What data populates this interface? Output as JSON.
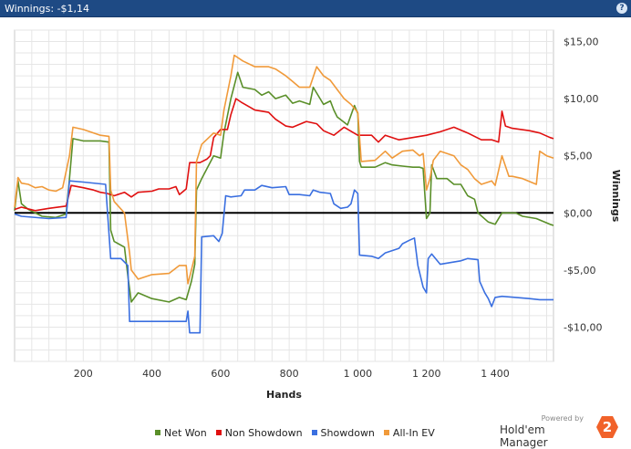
{
  "window": {
    "title": "Winnings: -$1,14",
    "help_label": "?"
  },
  "brand": {
    "powered_by": "Powered by",
    "name": "Hold'em Manager",
    "logo_text": "2"
  },
  "chart_data": {
    "type": "line",
    "xlabel": "Hands",
    "ylabel": "Winnings",
    "xlim": [
      0,
      1570
    ],
    "ylim": [
      -13,
      16
    ],
    "x_ticks": [
      200,
      400,
      600,
      800,
      1000,
      1200,
      1400
    ],
    "x_tick_labels": [
      "200",
      "400",
      "600",
      "800",
      "1 000",
      "1 200",
      "1 400"
    ],
    "y_ticks": [
      15,
      10,
      5,
      0,
      -5,
      -10
    ],
    "y_tick_labels": [
      "$15,00",
      "$10,00",
      "$5,00",
      "$0,00",
      "-$5,00",
      "-$10,00"
    ],
    "grid": true,
    "legend_position": "bottom",
    "series": [
      {
        "name": "Net Won",
        "color": "#5a8f29",
        "points": [
          [
            0,
            0.2
          ],
          [
            10,
            2.8
          ],
          [
            20,
            0.8
          ],
          [
            40,
            0.3
          ],
          [
            80,
            -0.3
          ],
          [
            120,
            -0.4
          ],
          [
            150,
            -0.1
          ],
          [
            160,
            3
          ],
          [
            170,
            6.5
          ],
          [
            200,
            6.3
          ],
          [
            250,
            6.3
          ],
          [
            275,
            6.2
          ],
          [
            280,
            -1.5
          ],
          [
            290,
            -2.5
          ],
          [
            320,
            -3
          ],
          [
            330,
            -5.5
          ],
          [
            340,
            -7.8
          ],
          [
            360,
            -7
          ],
          [
            400,
            -7.5
          ],
          [
            450,
            -7.8
          ],
          [
            480,
            -7.4
          ],
          [
            500,
            -7.6
          ],
          [
            515,
            -6
          ],
          [
            525,
            -4.5
          ],
          [
            530,
            2
          ],
          [
            545,
            3
          ],
          [
            580,
            5
          ],
          [
            600,
            4.8
          ],
          [
            610,
            7
          ],
          [
            630,
            10
          ],
          [
            650,
            12.3
          ],
          [
            665,
            11
          ],
          [
            700,
            10.8
          ],
          [
            720,
            10.3
          ],
          [
            740,
            10.6
          ],
          [
            760,
            10
          ],
          [
            790,
            10.3
          ],
          [
            810,
            9.6
          ],
          [
            830,
            9.8
          ],
          [
            860,
            9.5
          ],
          [
            870,
            11
          ],
          [
            900,
            9.5
          ],
          [
            920,
            9.8
          ],
          [
            930,
            9
          ],
          [
            940,
            8.4
          ],
          [
            970,
            7.7
          ],
          [
            990,
            9.4
          ],
          [
            1000,
            8.7
          ],
          [
            1005,
            4.5
          ],
          [
            1010,
            4
          ],
          [
            1050,
            4
          ],
          [
            1080,
            4.4
          ],
          [
            1100,
            4.2
          ],
          [
            1130,
            4.1
          ],
          [
            1160,
            4
          ],
          [
            1180,
            4
          ],
          [
            1190,
            3.9
          ],
          [
            1200,
            -0.5
          ],
          [
            1210,
            0
          ],
          [
            1215,
            4.2
          ],
          [
            1230,
            3
          ],
          [
            1260,
            3
          ],
          [
            1280,
            2.5
          ],
          [
            1300,
            2.5
          ],
          [
            1320,
            1.5
          ],
          [
            1340,
            1.2
          ],
          [
            1350,
            0
          ],
          [
            1380,
            -0.8
          ],
          [
            1400,
            -1
          ],
          [
            1420,
            0
          ],
          [
            1440,
            0
          ],
          [
            1460,
            0
          ],
          [
            1480,
            -0.3
          ],
          [
            1520,
            -0.5
          ],
          [
            1560,
            -1
          ],
          [
            1570,
            -1.1
          ]
        ]
      },
      {
        "name": "Non Showdown",
        "color": "#e01010",
        "points": [
          [
            0,
            0.3
          ],
          [
            20,
            0.5
          ],
          [
            60,
            0.2
          ],
          [
            100,
            0.4
          ],
          [
            150,
            0.6
          ],
          [
            165,
            2.4
          ],
          [
            200,
            2.2
          ],
          [
            230,
            2
          ],
          [
            250,
            1.8
          ],
          [
            270,
            1.7
          ],
          [
            290,
            1.5
          ],
          [
            320,
            1.8
          ],
          [
            340,
            1.4
          ],
          [
            360,
            1.8
          ],
          [
            400,
            1.9
          ],
          [
            420,
            2.1
          ],
          [
            450,
            2.1
          ],
          [
            470,
            2.3
          ],
          [
            480,
            1.6
          ],
          [
            500,
            2.1
          ],
          [
            510,
            4.4
          ],
          [
            540,
            4.4
          ],
          [
            560,
            4.7
          ],
          [
            570,
            5
          ],
          [
            580,
            6.6
          ],
          [
            600,
            7.3
          ],
          [
            620,
            7.3
          ],
          [
            630,
            8.6
          ],
          [
            645,
            10
          ],
          [
            660,
            9.7
          ],
          [
            700,
            9
          ],
          [
            740,
            8.8
          ],
          [
            760,
            8.2
          ],
          [
            790,
            7.6
          ],
          [
            810,
            7.5
          ],
          [
            850,
            8
          ],
          [
            880,
            7.8
          ],
          [
            900,
            7.2
          ],
          [
            930,
            6.8
          ],
          [
            960,
            7.5
          ],
          [
            1000,
            6.8
          ],
          [
            1040,
            6.8
          ],
          [
            1060,
            6.2
          ],
          [
            1080,
            6.8
          ],
          [
            1120,
            6.4
          ],
          [
            1160,
            6.6
          ],
          [
            1200,
            6.8
          ],
          [
            1240,
            7.1
          ],
          [
            1280,
            7.5
          ],
          [
            1320,
            7
          ],
          [
            1360,
            6.4
          ],
          [
            1390,
            6.4
          ],
          [
            1400,
            6.3
          ],
          [
            1410,
            6.2
          ],
          [
            1420,
            8.9
          ],
          [
            1430,
            7.6
          ],
          [
            1450,
            7.4
          ],
          [
            1500,
            7.2
          ],
          [
            1530,
            7
          ],
          [
            1560,
            6.6
          ],
          [
            1570,
            6.5
          ]
        ]
      },
      {
        "name": "Showdown",
        "color": "#3a6fe0",
        "points": [
          [
            0,
            -0.1
          ],
          [
            20,
            -0.3
          ],
          [
            100,
            -0.5
          ],
          [
            150,
            -0.4
          ],
          [
            160,
            2.8
          ],
          [
            200,
            2.7
          ],
          [
            265,
            2.5
          ],
          [
            280,
            -4
          ],
          [
            310,
            -4
          ],
          [
            330,
            -4.6
          ],
          [
            335,
            -9.5
          ],
          [
            420,
            -9.5
          ],
          [
            500,
            -9.5
          ],
          [
            505,
            -8.6
          ],
          [
            510,
            -10.5
          ],
          [
            540,
            -10.5
          ],
          [
            545,
            -2.1
          ],
          [
            580,
            -2
          ],
          [
            595,
            -2.5
          ],
          [
            605,
            -1.8
          ],
          [
            615,
            1.5
          ],
          [
            630,
            1.4
          ],
          [
            660,
            1.5
          ],
          [
            670,
            2
          ],
          [
            700,
            2
          ],
          [
            720,
            2.4
          ],
          [
            750,
            2.2
          ],
          [
            790,
            2.3
          ],
          [
            800,
            1.6
          ],
          [
            830,
            1.6
          ],
          [
            860,
            1.5
          ],
          [
            870,
            2
          ],
          [
            890,
            1.8
          ],
          [
            920,
            1.7
          ],
          [
            930,
            0.8
          ],
          [
            950,
            0.4
          ],
          [
            970,
            0.5
          ],
          [
            980,
            0.8
          ],
          [
            990,
            2
          ],
          [
            1000,
            1.7
          ],
          [
            1005,
            -3.7
          ],
          [
            1040,
            -3.8
          ],
          [
            1060,
            -4
          ],
          [
            1080,
            -3.5
          ],
          [
            1100,
            -3.3
          ],
          [
            1120,
            -3.1
          ],
          [
            1130,
            -2.7
          ],
          [
            1150,
            -2.4
          ],
          [
            1165,
            -2.2
          ],
          [
            1175,
            -4.6
          ],
          [
            1190,
            -6.5
          ],
          [
            1200,
            -7
          ],
          [
            1205,
            -4
          ],
          [
            1215,
            -3.6
          ],
          [
            1240,
            -4.5
          ],
          [
            1280,
            -4.3
          ],
          [
            1300,
            -4.2
          ],
          [
            1320,
            -4
          ],
          [
            1350,
            -4.1
          ],
          [
            1355,
            -6
          ],
          [
            1370,
            -7
          ],
          [
            1380,
            -7.5
          ],
          [
            1390,
            -8.2
          ],
          [
            1400,
            -7.4
          ],
          [
            1420,
            -7.3
          ],
          [
            1460,
            -7.4
          ],
          [
            1500,
            -7.5
          ],
          [
            1530,
            -7.6
          ],
          [
            1570,
            -7.6
          ]
        ]
      },
      {
        "name": "All-In EV",
        "color": "#f09a3a",
        "points": [
          [
            0,
            0.5
          ],
          [
            10,
            3.1
          ],
          [
            20,
            2.6
          ],
          [
            40,
            2.5
          ],
          [
            60,
            2.2
          ],
          [
            80,
            2.3
          ],
          [
            100,
            2
          ],
          [
            120,
            1.9
          ],
          [
            140,
            2.2
          ],
          [
            160,
            5
          ],
          [
            170,
            7.5
          ],
          [
            200,
            7.3
          ],
          [
            250,
            6.8
          ],
          [
            275,
            6.7
          ],
          [
            280,
            2
          ],
          [
            290,
            1
          ],
          [
            320,
            0
          ],
          [
            335,
            -3.5
          ],
          [
            340,
            -5
          ],
          [
            360,
            -5.8
          ],
          [
            400,
            -5.4
          ],
          [
            450,
            -5.3
          ],
          [
            480,
            -4.6
          ],
          [
            500,
            -4.6
          ],
          [
            505,
            -6.2
          ],
          [
            515,
            -5
          ],
          [
            525,
            -3.8
          ],
          [
            530,
            4.5
          ],
          [
            545,
            6
          ],
          [
            580,
            7
          ],
          [
            600,
            6.8
          ],
          [
            610,
            9
          ],
          [
            630,
            12
          ],
          [
            640,
            13.8
          ],
          [
            665,
            13.3
          ],
          [
            700,
            12.8
          ],
          [
            740,
            12.8
          ],
          [
            760,
            12.6
          ],
          [
            790,
            12
          ],
          [
            810,
            11.5
          ],
          [
            830,
            11
          ],
          [
            860,
            11
          ],
          [
            880,
            12.8
          ],
          [
            900,
            12
          ],
          [
            920,
            11.6
          ],
          [
            940,
            10.8
          ],
          [
            960,
            10
          ],
          [
            980,
            9.5
          ],
          [
            1000,
            8.8
          ],
          [
            1010,
            4.5
          ],
          [
            1050,
            4.6
          ],
          [
            1080,
            5.4
          ],
          [
            1100,
            4.8
          ],
          [
            1130,
            5.4
          ],
          [
            1160,
            5.5
          ],
          [
            1180,
            5
          ],
          [
            1190,
            5.2
          ],
          [
            1200,
            2
          ],
          [
            1210,
            3
          ],
          [
            1220,
            4.6
          ],
          [
            1240,
            5.4
          ],
          [
            1280,
            5
          ],
          [
            1300,
            4.2
          ],
          [
            1320,
            3.8
          ],
          [
            1340,
            3
          ],
          [
            1360,
            2.5
          ],
          [
            1390,
            2.8
          ],
          [
            1400,
            2.4
          ],
          [
            1420,
            5
          ],
          [
            1440,
            3.2
          ],
          [
            1450,
            3.2
          ],
          [
            1480,
            3
          ],
          [
            1520,
            2.5
          ],
          [
            1530,
            5.4
          ],
          [
            1550,
            5
          ],
          [
            1570,
            4.8
          ]
        ]
      }
    ]
  }
}
